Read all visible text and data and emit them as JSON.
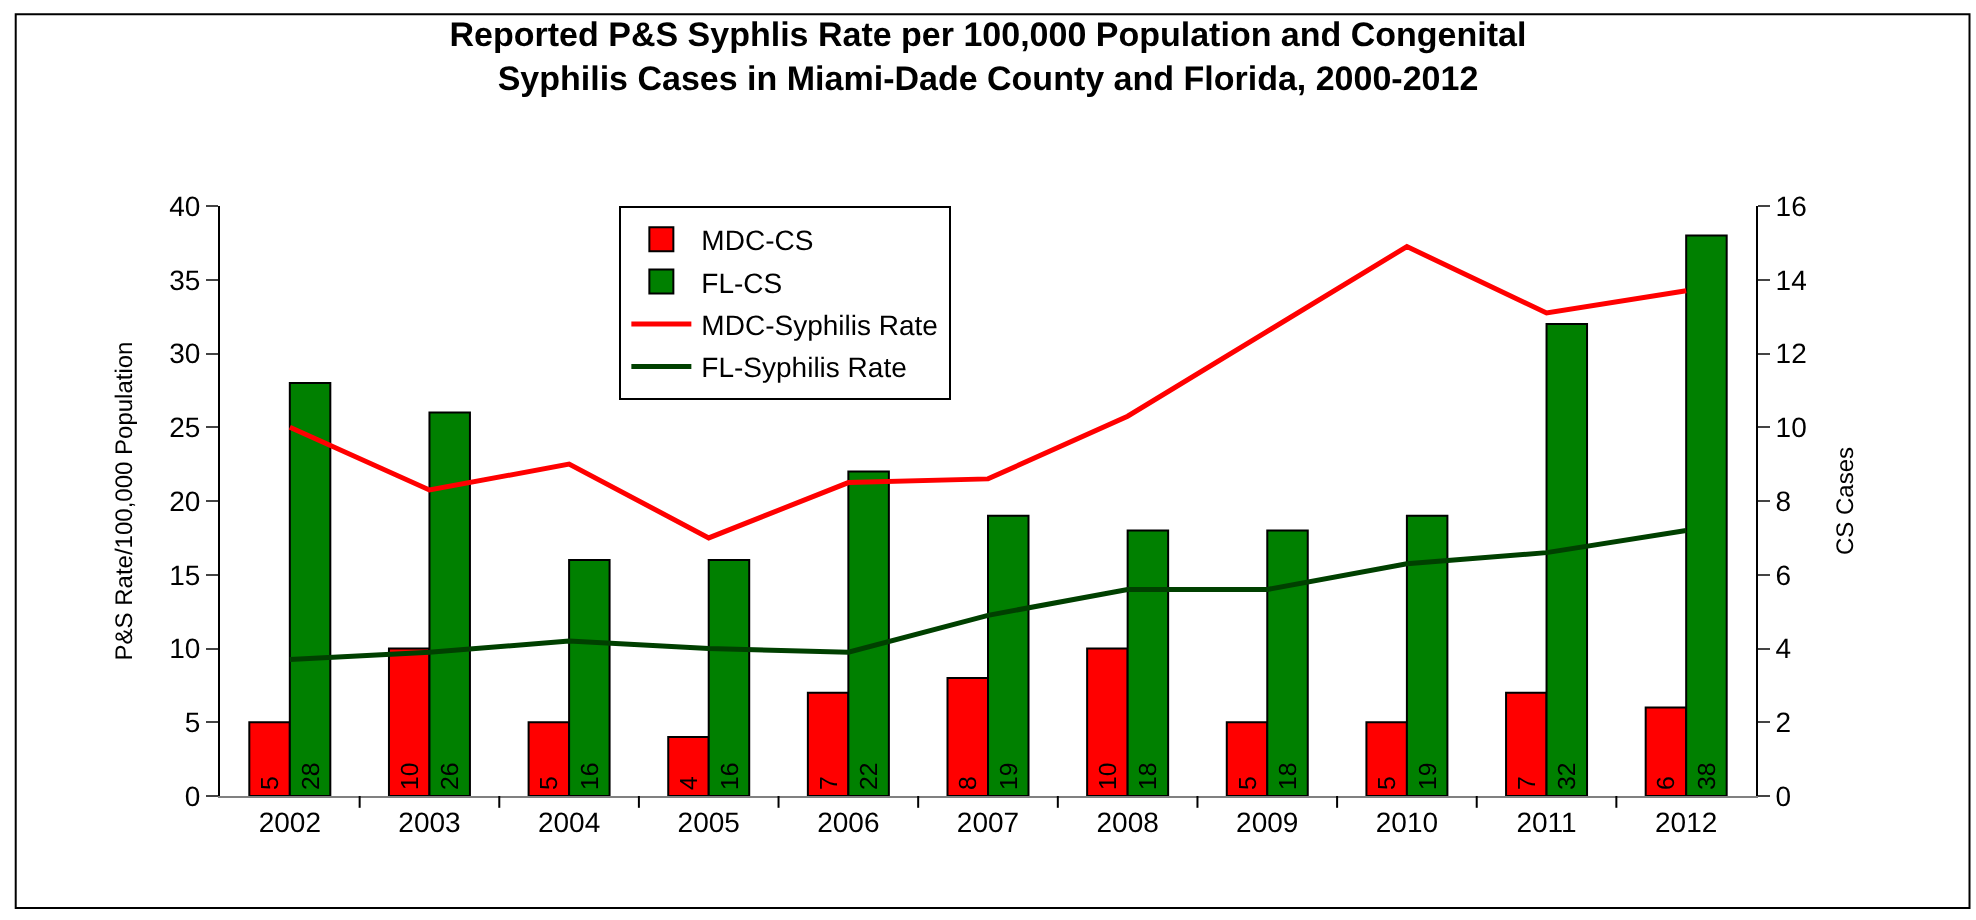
{
  "chart_data": {
    "type": "bar",
    "title": "Reported P&S Syphlis Rate per 100,000 Population and Congenital\nSyphilis Cases in Miami-Dade County and Florida, 2000-2012",
    "ylabel": "P&S Rate/100,000 Population",
    "y2label": "CS Cases",
    "categories": [
      "2002",
      "2003",
      "2004",
      "2005",
      "2006",
      "2007",
      "2008",
      "2009",
      "2010",
      "2011",
      "2012"
    ],
    "series": [
      {
        "name": "MDC-CS",
        "color": "#ff0000",
        "values": [
          5,
          10,
          5,
          4,
          7,
          8,
          10,
          5,
          5,
          7,
          6
        ],
        "value_labels": [
          "5",
          "10",
          "5",
          "4",
          "7",
          "8",
          "10",
          "5",
          "5",
          "7",
          "6"
        ]
      },
      {
        "name": "FL-CS",
        "color": "#008000",
        "values": [
          28,
          26,
          16,
          16,
          22,
          19,
          18,
          18,
          19,
          32,
          38
        ],
        "value_labels": [
          "28",
          "26",
          "16",
          "16",
          "22",
          "19",
          "18",
          "18",
          "19",
          "32",
          "38"
        ]
      },
      {
        "name": "MDC-Syphilis Rate",
        "type": "line",
        "axis": "y2",
        "color": "#ff0000",
        "values": [
          10.0,
          8.3,
          9.0,
          7.0,
          8.5,
          8.6,
          10.3,
          12.6,
          14.9,
          13.1,
          13.7
        ]
      },
      {
        "name": "FL-Syphilis Rate",
        "type": "line",
        "axis": "y2",
        "color": "#004000",
        "values": [
          3.7,
          3.9,
          4.2,
          4.0,
          3.9,
          4.9,
          5.6,
          5.6,
          6.3,
          6.6,
          7.2
        ]
      }
    ],
    "ylim": [
      0,
      40
    ],
    "yticks": [
      0,
      5,
      10,
      15,
      20,
      25,
      30,
      35,
      40
    ],
    "y2lim": [
      0,
      16
    ],
    "y2ticks": [
      0,
      2,
      4,
      6,
      8,
      10,
      12,
      14,
      16
    ],
    "legend": "top",
    "marker": "none",
    "line_style": "solid"
  }
}
